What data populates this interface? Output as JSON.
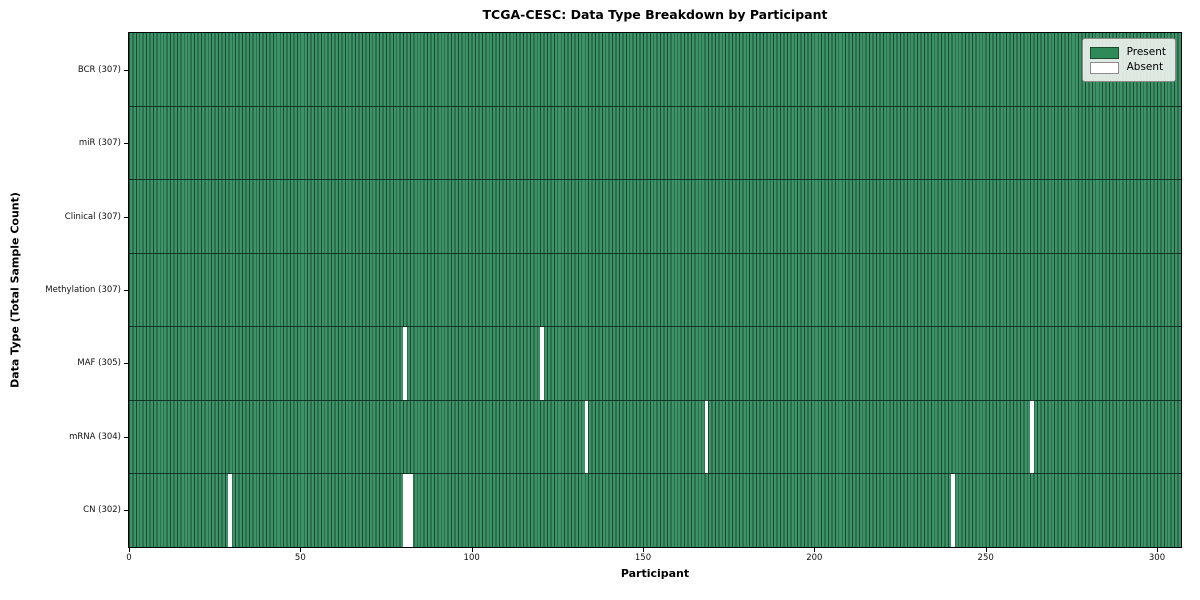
{
  "chart_data": {
    "type": "heatmap",
    "title": "TCGA-CESC: Data Type Breakdown by Participant",
    "xlabel": "Participant",
    "ylabel": "Data Type (Total Sample Count)",
    "n_participants": 307,
    "x_ticks": [
      0,
      50,
      100,
      150,
      200,
      250,
      300
    ],
    "rows": [
      {
        "label": "BCR (307)",
        "present_count": 307,
        "absent_participants": []
      },
      {
        "label": "miR (307)",
        "present_count": 307,
        "absent_participants": []
      },
      {
        "label": "Clinical (307)",
        "present_count": 307,
        "absent_participants": []
      },
      {
        "label": "Methylation (307)",
        "present_count": 307,
        "absent_participants": []
      },
      {
        "label": "MAF (305)",
        "present_count": 305,
        "absent_participants": [
          80,
          120
        ]
      },
      {
        "label": "mRNA (304)",
        "present_count": 304,
        "absent_participants": [
          133,
          168,
          263
        ]
      },
      {
        "label": "CN (302)",
        "present_count": 302,
        "absent_participants": [
          29,
          80,
          81,
          82,
          240
        ]
      }
    ],
    "legend": [
      {
        "label": "Present",
        "color": "#2e8b57"
      },
      {
        "label": "Absent",
        "color": "#ffffff"
      }
    ],
    "colors": {
      "present_fill": "#3d9367",
      "cell_edge": "rgba(13,51,33,0.75)",
      "row_separator": "rgba(8,40,25,0.85)",
      "absent_fill": "#ffffff",
      "axis": "#000000"
    },
    "layout_hints": {
      "grid": "per-cell vertical edges",
      "legend_position": "upper right"
    }
  }
}
